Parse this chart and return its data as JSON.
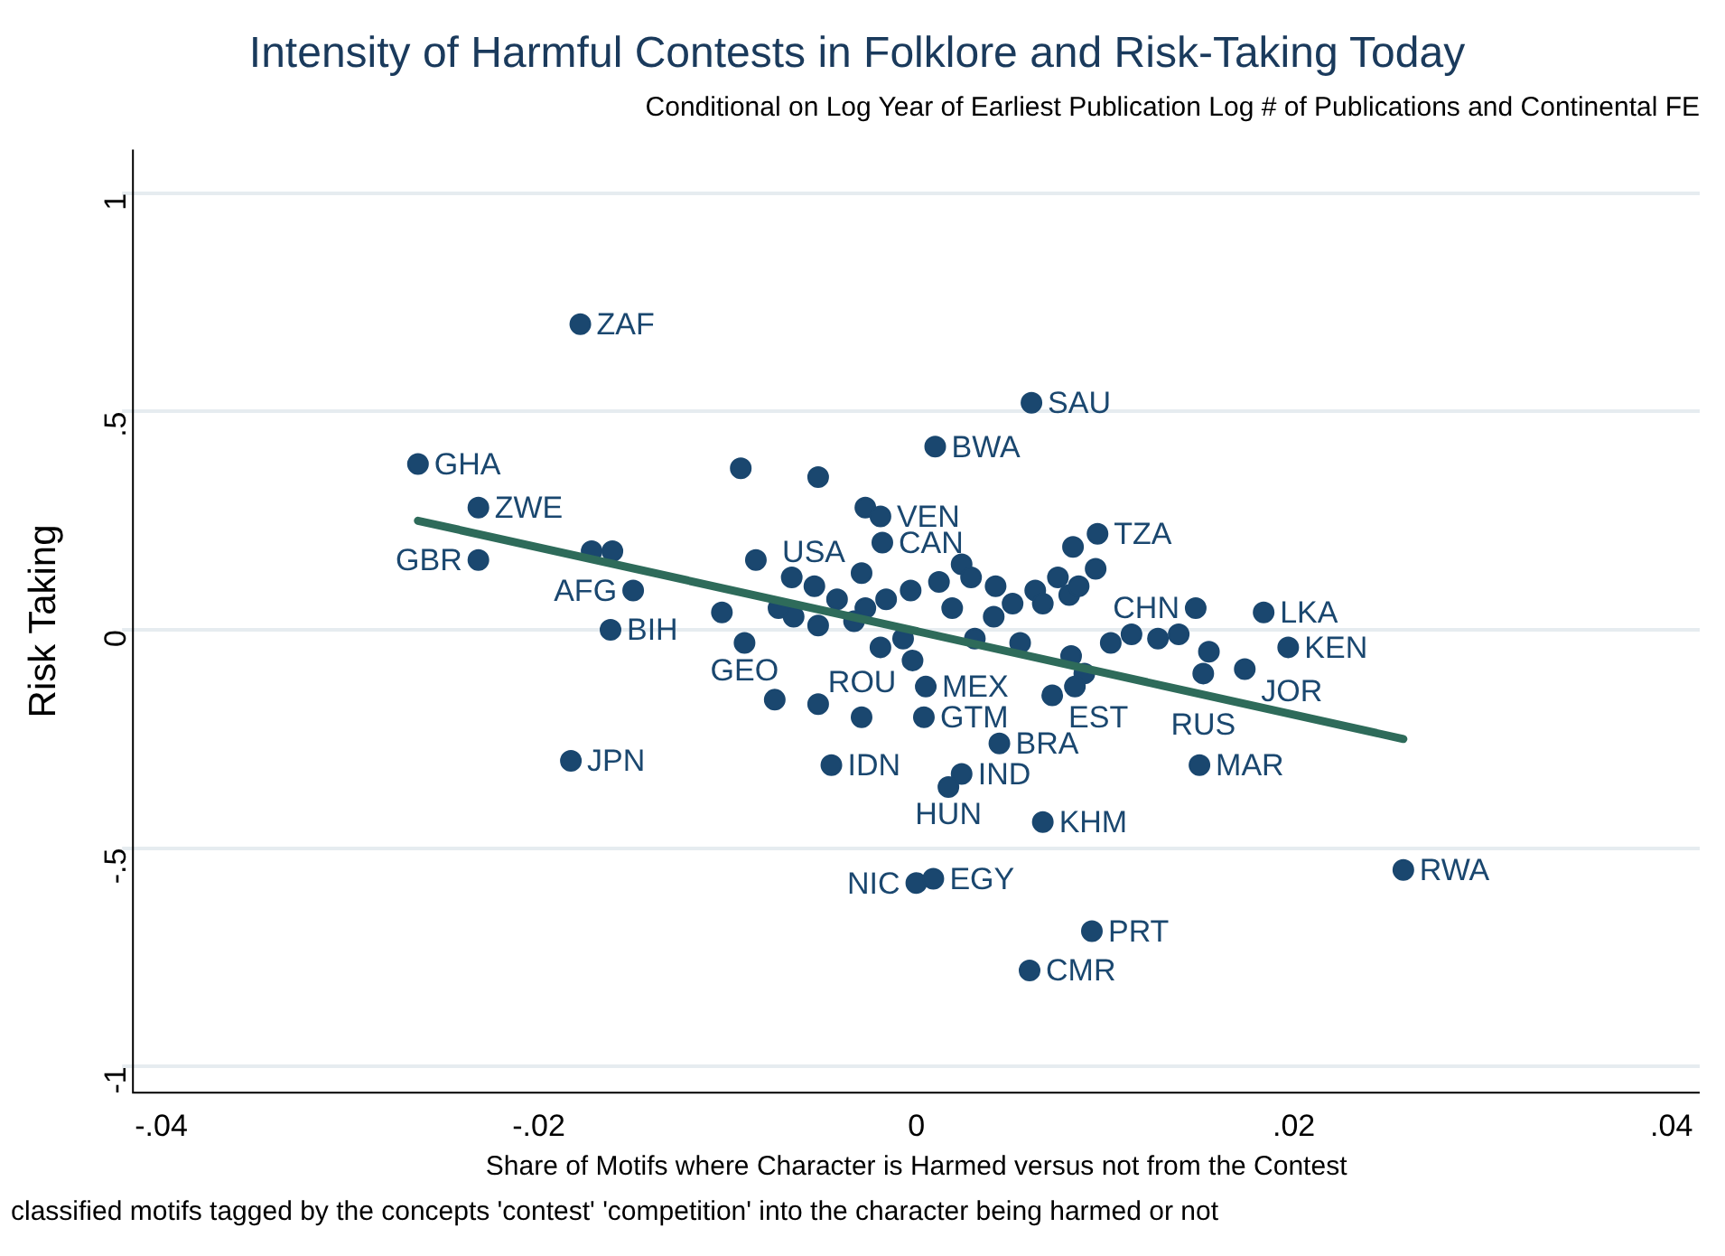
{
  "chart_data": {
    "type": "scatter",
    "title": "Intensity of Harmful Contests in Folklore and Risk-Taking Today",
    "subtitle": "Conditional on Log Year of Earliest Publication Log # of Publications and Continental FE",
    "xlabel": "Share of Motifs where Character is Harmed versus not from the Contest",
    "ylabel": "Risk Taking",
    "xlim": [
      -0.0415,
      0.0415
    ],
    "ylim": [
      -1.06,
      1.1
    ],
    "xticks": [
      {
        "value": -0.04,
        "label": "-.04"
      },
      {
        "value": -0.02,
        "label": "-.02"
      },
      0,
      {
        "value": 0.02,
        "label": ".02"
      },
      {
        "value": 0.04,
        "label": ".04"
      }
    ],
    "yticks": [
      -1,
      {
        "value": -0.5,
        "label": "-.5"
      },
      0,
      {
        "value": 0.5,
        "label": ".5"
      },
      1
    ],
    "grid": "y",
    "legend": false,
    "series": [
      {
        "color": "#1a476f",
        "marker": "circle",
        "x": [
          -0.0178,
          0.0061,
          -0.0264,
          -0.0093,
          -0.0052,
          0.001,
          -0.0232,
          -0.0027,
          -0.0019,
          -0.0232,
          -0.0018,
          0.0096,
          0.0083,
          -0.015,
          -0.0162,
          -0.0183,
          -0.0085,
          -0.0103,
          -0.0091,
          -0.0029,
          0.0148,
          0.0184,
          0.0197,
          0.0152,
          0.0174,
          0.015,
          0.0258,
          -0.0002,
          0.0005,
          -0.0075,
          -0.0052,
          -0.0029,
          0.0004,
          0.0044,
          -0.0045,
          0.0024,
          0.0017,
          0.0067,
          0.0,
          0.0009,
          0.0093,
          0.006,
          0.0072,
          -0.0172,
          -0.0161,
          -0.0066,
          -0.0054,
          -0.0042,
          -0.0027,
          -0.0016,
          -0.0003,
          0.0012,
          0.0024,
          0.0029,
          0.0042,
          0.0051,
          0.0063,
          0.0067,
          0.0075,
          0.0081,
          0.0086,
          0.0095,
          0.0103,
          0.0114,
          0.0128,
          0.0139,
          0.0155,
          0.0082,
          0.0089,
          0.0084,
          -0.0065,
          -0.0052,
          -0.0019,
          -0.0007,
          0.0019,
          0.0031,
          0.0041,
          0.0055,
          -0.0073,
          -0.0033
        ],
        "values": [
          0.7,
          0.52,
          0.38,
          0.37,
          0.35,
          0.42,
          0.28,
          0.28,
          0.26,
          0.16,
          0.2,
          0.22,
          0.19,
          0.09,
          0.0,
          -0.3,
          0.16,
          0.04,
          -0.03,
          0.13,
          0.05,
          0.04,
          -0.04,
          -0.1,
          -0.09,
          -0.31,
          -0.55,
          -0.07,
          -0.13,
          -0.16,
          -0.17,
          -0.2,
          -0.2,
          -0.26,
          -0.31,
          -0.33,
          -0.36,
          -0.44,
          -0.58,
          -0.57,
          -0.69,
          -0.78,
          -0.15,
          0.18,
          0.18,
          0.12,
          0.1,
          0.07,
          0.05,
          0.07,
          0.09,
          0.11,
          0.15,
          0.12,
          0.1,
          0.06,
          0.09,
          0.06,
          0.12,
          0.08,
          0.1,
          0.14,
          -0.03,
          -0.01,
          -0.02,
          -0.01,
          -0.05,
          -0.06,
          -0.1,
          -0.13,
          0.03,
          0.01,
          -0.04,
          -0.02,
          0.05,
          -0.02,
          0.03,
          -0.03,
          0.05,
          0.02
        ]
      },
      {
        "type": "line",
        "color": "#2e6b5a",
        "x": [
          -0.0264,
          0.0258
        ],
        "values": [
          0.25,
          -0.25
        ]
      }
    ],
    "annotations": [
      {
        "text": "ZAF",
        "x": -0.0178,
        "y": 0.7
      },
      {
        "text": "SAU",
        "x": 0.0061,
        "y": 0.52
      },
      {
        "text": "GHA",
        "x": -0.0264,
        "y": 0.38
      },
      {
        "text": "BWA",
        "x": 0.001,
        "y": 0.42
      },
      {
        "text": "ZWE",
        "x": -0.0232,
        "y": 0.28
      },
      {
        "text": "VEN",
        "x": -0.0019,
        "y": 0.26
      },
      {
        "text": "GBR",
        "x": -0.0232,
        "y": 0.16
      },
      {
        "text": "CAN",
        "x": -0.0018,
        "y": 0.2
      },
      {
        "text": "TZA",
        "x": 0.0096,
        "y": 0.22
      },
      {
        "text": "AFG",
        "x": -0.015,
        "y": 0.09
      },
      {
        "text": "BIH",
        "x": -0.0162,
        "y": 0.0
      },
      {
        "text": "JPN",
        "x": -0.0183,
        "y": -0.3
      },
      {
        "text": "GEO",
        "x": -0.0091,
        "y": -0.03
      },
      {
        "text": "USA",
        "x": -0.0029,
        "y": 0.13
      },
      {
        "text": "CHN",
        "x": 0.0148,
        "y": 0.05
      },
      {
        "text": "LKA",
        "x": 0.0184,
        "y": 0.04
      },
      {
        "text": "KEN",
        "x": 0.0197,
        "y": -0.04
      },
      {
        "text": "RUS",
        "x": 0.0152,
        "y": -0.1
      },
      {
        "text": "JOR",
        "x": 0.0174,
        "y": -0.09
      },
      {
        "text": "MAR",
        "x": 0.015,
        "y": -0.31
      },
      {
        "text": "RWA",
        "x": 0.0258,
        "y": -0.55
      },
      {
        "text": "ROU",
        "x": -0.0002,
        "y": -0.07
      },
      {
        "text": "MEX",
        "x": 0.0005,
        "y": -0.13
      },
      {
        "text": "GTM",
        "x": 0.0004,
        "y": -0.2
      },
      {
        "text": "BRA",
        "x": 0.0044,
        "y": -0.26
      },
      {
        "text": "IDN",
        "x": -0.0045,
        "y": -0.31
      },
      {
        "text": "IND",
        "x": 0.0024,
        "y": -0.33
      },
      {
        "text": "HUN",
        "x": 0.0017,
        "y": -0.36
      },
      {
        "text": "KHM",
        "x": 0.0067,
        "y": -0.44
      },
      {
        "text": "NIC",
        "x": 0.0,
        "y": -0.58
      },
      {
        "text": "EGY",
        "x": 0.0009,
        "y": -0.57
      },
      {
        "text": "PRT",
        "x": 0.0093,
        "y": -0.69
      },
      {
        "text": "CMR",
        "x": 0.006,
        "y": -0.78
      },
      {
        "text": "EST",
        "x": 0.0072,
        "y": -0.15
      },
      "classified motifs tagged by the concepts 'contest' 'competition' into the character being harmed or not"
    ]
  }
}
